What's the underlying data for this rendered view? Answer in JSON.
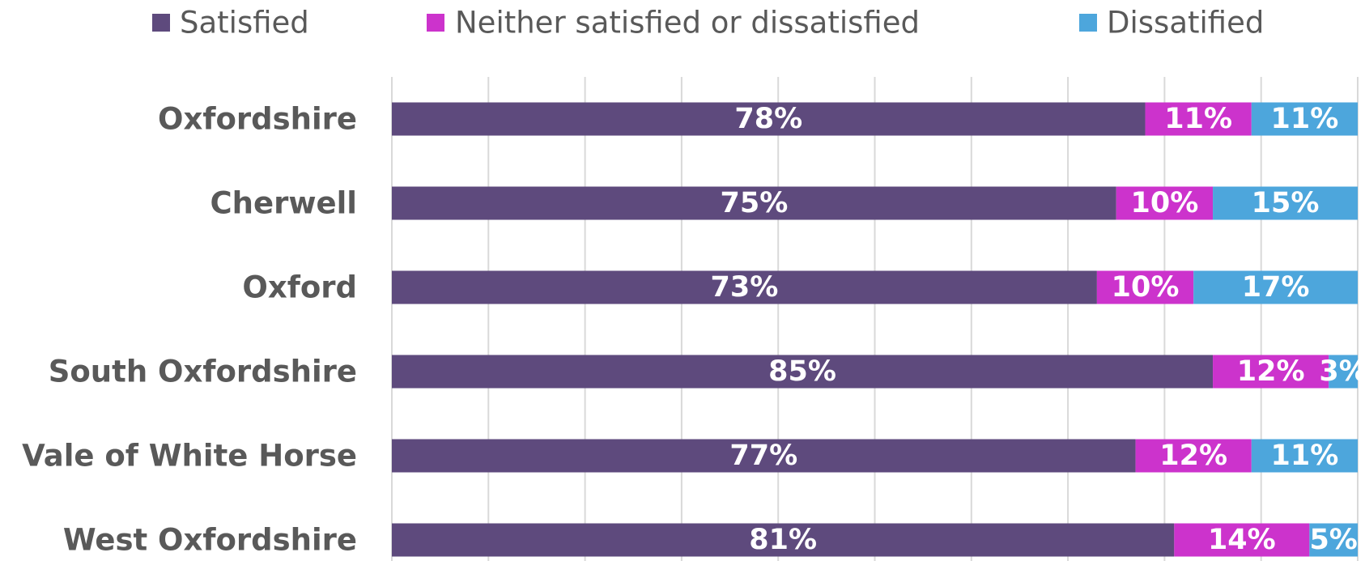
{
  "chart_data": {
    "type": "stacked-bar-horizontal",
    "categories": [
      "Oxfordshire",
      "Cherwell",
      "Oxford",
      "South Oxfordshire",
      "Vale of White Horse",
      "West Oxfordshire"
    ],
    "series": [
      {
        "name": "Satisfied",
        "color": "#5e4a7d",
        "values": [
          78,
          75,
          73,
          85,
          77,
          81
        ],
        "value_labels": [
          "78%",
          "75%",
          "73%",
          "85%",
          "77%",
          "81%"
        ]
      },
      {
        "name": "Neither satisfied or dissatisfied",
        "color": "#cc33cc",
        "values": [
          11,
          10,
          10,
          12,
          12,
          14
        ],
        "value_labels": [
          "11%",
          "10%",
          "10%",
          "12%",
          "12%",
          "14%"
        ]
      },
      {
        "name": "Dissatified",
        "color": "#4da6dc",
        "values": [
          11,
          15,
          17,
          3,
          11,
          5
        ],
        "value_labels": [
          "11%",
          "15%",
          "17%",
          "3%",
          "11%",
          "5%"
        ]
      }
    ],
    "xlim": [
      0,
      100
    ],
    "xticks": [
      0,
      10,
      20,
      30,
      40,
      50,
      60,
      70,
      80,
      90,
      100
    ],
    "grid": true,
    "legend": "top"
  }
}
